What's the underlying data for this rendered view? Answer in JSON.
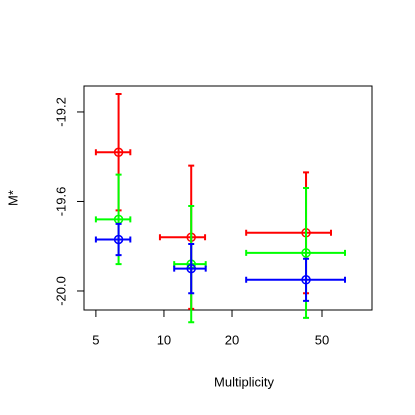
{
  "chart_data": {
    "type": "errorbar",
    "xlabel": "Multiplicity",
    "ylabel": "M*",
    "xscale": "log",
    "xlim": [
      4.43,
      83.2
    ],
    "ylim": [
      -20.085,
      -19.084
    ],
    "xticks": [
      5,
      10,
      20,
      50
    ],
    "yticks": [
      -19.2,
      -19.6,
      {
        "value": -20.0,
        "label": "-20.0"
      }
    ],
    "series": [
      {
        "color": "#ff0000",
        "x": [
          6.3,
          13.2,
          42.5
        ],
        "values": [
          -19.38,
          -19.76,
          -19.74
        ],
        "yerr": [
          0.26,
          0.32,
          0.27
        ],
        "xlow": [
          5.0,
          9.6,
          23.1
        ],
        "xhigh": [
          7.1,
          15.2,
          54.8
        ]
      },
      {
        "color": "#00ff00",
        "x": [
          6.3,
          13.2,
          42.5
        ],
        "values": [
          -19.68,
          -19.88,
          -19.83
        ],
        "yerr": [
          0.2,
          0.26,
          0.29
        ],
        "xlow": [
          5.0,
          11.1,
          23.1
        ],
        "xhigh": [
          7.1,
          15.3,
          63.2
        ]
      },
      {
        "color": "#0000ff",
        "x": [
          6.3,
          13.2,
          42.5
        ],
        "values": [
          -19.77,
          -19.9,
          -19.95
        ],
        "yerr": [
          0.07,
          0.11,
          0.094
        ],
        "xlow": [
          5.0,
          11.1,
          23.1
        ],
        "xhigh": [
          7.1,
          15.3,
          63.2
        ]
      }
    ]
  }
}
